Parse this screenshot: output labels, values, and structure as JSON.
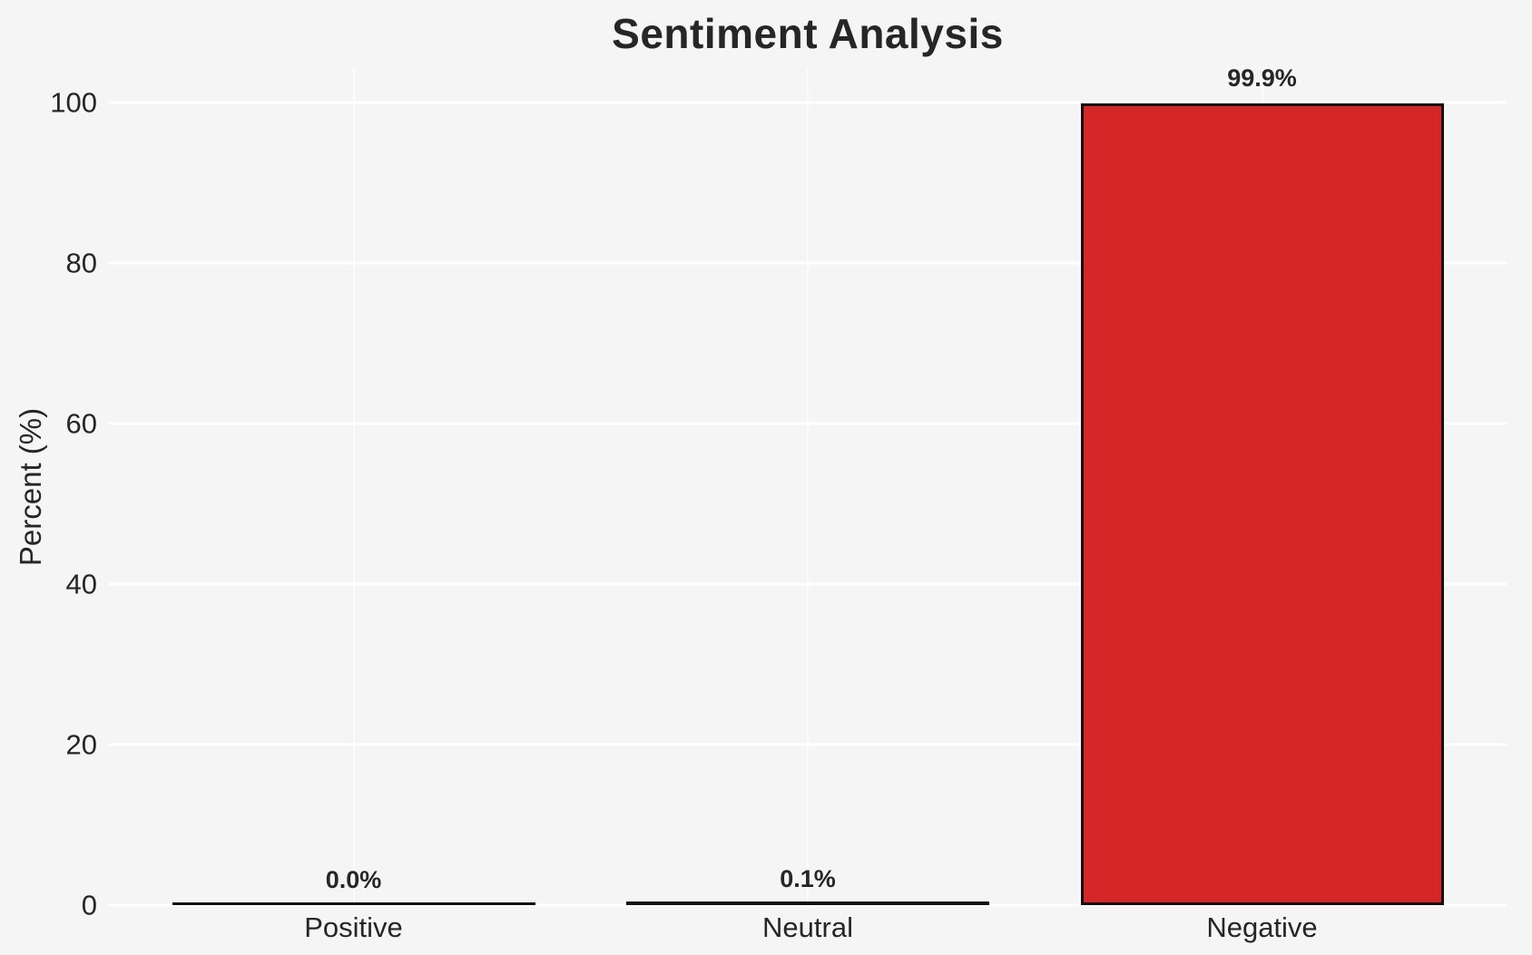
{
  "chart_data": {
    "type": "bar",
    "title": "Sentiment Analysis",
    "xlabel": "",
    "ylabel": "Percent (%)",
    "categories": [
      "Positive",
      "Neutral",
      "Negative"
    ],
    "values": [
      0.0,
      0.1,
      99.9
    ],
    "value_labels": [
      "0.0%",
      "0.1%",
      "99.9%"
    ],
    "yticks": [
      0,
      20,
      40,
      60,
      80,
      100
    ],
    "ylim": [
      0,
      104.3
    ],
    "grid": "on",
    "legend": "none",
    "bar_color": "#d62728",
    "bar_edge_color": "#111111",
    "background_color": "#f5f5f6",
    "gridline_color": "#ffffff",
    "text_color": "#262626"
  }
}
